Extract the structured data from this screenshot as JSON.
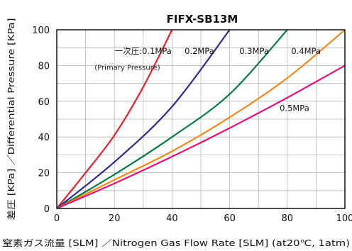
{
  "chart_data": {
    "type": "line",
    "title": "FIFX-SB13M",
    "xlabel": "窒素ガス流量 [SLM] ／Nitrogen Gas Flow Rate [SLM] (at20℃, 1atm)",
    "ylabel": "差圧 [KPa] ／Differential Pressure [KPa]",
    "xlim": [
      0,
      100
    ],
    "ylim": [
      0,
      100
    ],
    "x_ticks": [
      0,
      20,
      40,
      60,
      80,
      100
    ],
    "y_ticks": [
      0,
      20,
      40,
      60,
      80,
      100
    ],
    "grid": true,
    "legend": "inline labels",
    "note": "(Primary Pressure)",
    "series": [
      {
        "name": "一次圧:0.1MPa",
        "color": "#e8202a",
        "x": [
          0,
          10,
          20,
          30,
          40
        ],
        "y": [
          0,
          20,
          41,
          68,
          100
        ]
      },
      {
        "name": "0.2MPa",
        "color": "#2e2d8f",
        "x": [
          0,
          20,
          40,
          60
        ],
        "y": [
          0,
          26,
          57,
          100
        ]
      },
      {
        "name": "0.3MPa",
        "color": "#0a7d44",
        "x": [
          0,
          20,
          40,
          60,
          80
        ],
        "y": [
          0,
          19,
          40,
          64,
          100
        ]
      },
      {
        "name": "0.4MPa",
        "color": "#f08a1a",
        "x": [
          0,
          20,
          40,
          60,
          80,
          100
        ],
        "y": [
          0,
          16,
          32,
          51,
          73,
          100
        ]
      },
      {
        "name": "0.5MPa",
        "color": "#e0147a",
        "x": [
          0,
          20,
          40,
          60,
          80,
          100
        ],
        "y": [
          0,
          14,
          29,
          45,
          62,
          80
        ]
      }
    ]
  }
}
